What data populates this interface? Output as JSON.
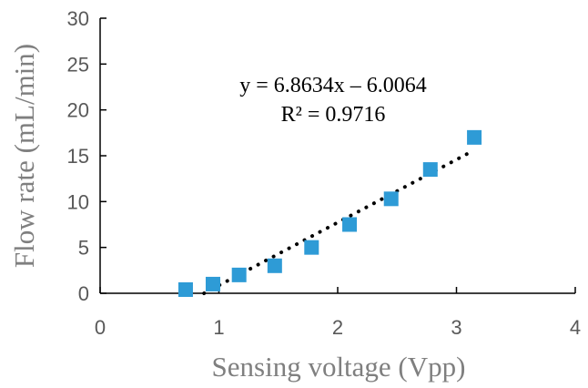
{
  "chart_data": {
    "type": "scatter",
    "xlabel": "Sensing voltage (Vpp)",
    "ylabel": "Flow rate (mL/min)",
    "xlim": [
      0,
      4
    ],
    "ylim": [
      0,
      30
    ],
    "x_ticks": [
      "0",
      "1",
      "2",
      "3",
      "4"
    ],
    "y_ticks": [
      "0",
      "5",
      "10",
      "15",
      "20",
      "25",
      "30"
    ],
    "grid": false,
    "legend": "none",
    "series": [
      {
        "marker": "square",
        "color": "#2E9BD6",
        "points": [
          {
            "x": 0.72,
            "y": 0.4
          },
          {
            "x": 0.95,
            "y": 1.0
          },
          {
            "x": 1.17,
            "y": 2.0
          },
          {
            "x": 1.47,
            "y": 3.0
          },
          {
            "x": 1.78,
            "y": 5.0
          },
          {
            "x": 2.1,
            "y": 7.5
          },
          {
            "x": 2.45,
            "y": 10.3
          },
          {
            "x": 2.78,
            "y": 13.5
          },
          {
            "x": 3.15,
            "y": 17.0
          }
        ]
      }
    ],
    "trendline": {
      "style": "dotted",
      "color": "#000000",
      "equation": "y = 6.8634x – 6.0064",
      "r_squared": "R² = 0.9716",
      "x_range": [
        0.875,
        3.1
      ]
    }
  }
}
